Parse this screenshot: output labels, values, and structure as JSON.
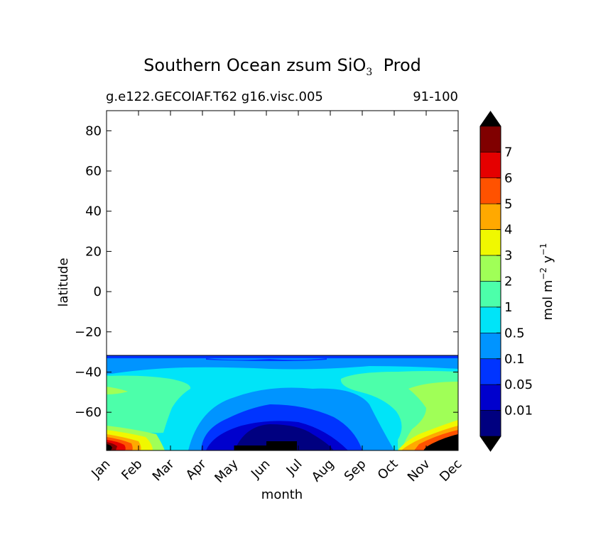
{
  "chart_data": {
    "type": "heatmap",
    "title": "Southern Ocean zsum SiO",
    "title_subscript": "3",
    "title_suffix": "Prod",
    "subtitle_left": "g.e122.GECOIAF.T62 g16.visc.005",
    "subtitle_right": "91-100",
    "xlabel": "month",
    "ylabel": "latitude",
    "x_categories": [
      "Jan",
      "Feb",
      "Mar",
      "Apr",
      "May",
      "Jun",
      "Jul",
      "Aug",
      "Sep",
      "Oct",
      "Nov",
      "Dec"
    ],
    "ylim": [
      -79,
      90
    ],
    "y_ticks": [
      80,
      60,
      40,
      20,
      0,
      -20,
      -40,
      -60
    ],
    "y_tick_labels": [
      "80",
      "60",
      "40",
      "20",
      "0",
      "−20",
      "−40",
      "−60"
    ],
    "data_lat_range": [
      -79,
      -32
    ],
    "colorbar": {
      "label": "mol m",
      "label_exp1": "−2",
      "label_mid": "y",
      "label_exp2": "−1",
      "extend": "both",
      "levels": [
        "0.01",
        "0.05",
        "0.1",
        "0.5",
        "1",
        "2",
        "3",
        "4",
        "5",
        "6",
        "7"
      ],
      "colors": [
        "#000080",
        "#0000cd",
        "#0034ff",
        "#0094ff",
        "#00e4f8",
        "#4cffaa",
        "#a0ff57",
        "#f0f800",
        "#ffa900",
        "#ff5200",
        "#e50000",
        "#800000"
      ],
      "under_color": "#000000",
      "over_color": "#000000"
    }
  }
}
